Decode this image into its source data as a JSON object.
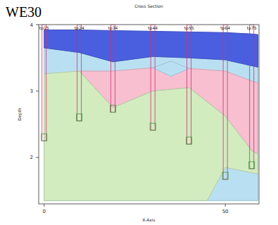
{
  "chart_data": {
    "type": "cross_section",
    "title": "WE30",
    "subtitle": "Cross Section",
    "x_label": "X-Axis",
    "y_label": "Depth",
    "xlim": [
      -1.5,
      59.3
    ],
    "ylim": [
      1.3,
      4.0
    ],
    "xticks": [
      0,
      50
    ],
    "yticks": [
      2,
      3,
      4
    ],
    "boreholes": {
      "names": [
        "tp15",
        "tp24",
        "tp34",
        "tp44",
        "tp55",
        "tp64",
        "tp75"
      ],
      "x": [
        0,
        9.7,
        19,
        30,
        40,
        50,
        57.3
      ],
      "bottom": [
        2.25,
        2.55,
        2.68,
        2.41,
        2.2,
        1.67,
        1.83
      ]
    },
    "layers": [
      {
        "color": "#b9e0f2",
        "points": [
          [
            0,
            3.65
          ],
          [
            9.7,
            3.58
          ],
          [
            19,
            3.44
          ],
          [
            30,
            3.52
          ],
          [
            40,
            3.5
          ],
          [
            50,
            3.47
          ],
          [
            57.3,
            3.38
          ],
          [
            59,
            3.36
          ],
          [
            59,
            1.35
          ],
          [
            0,
            1.35
          ]
        ]
      },
      {
        "color": "#f7bfd0",
        "points": [
          [
            9.7,
            3.3
          ],
          [
            19,
            3.3
          ],
          [
            30,
            3.35
          ],
          [
            40,
            3.34
          ],
          [
            50,
            3.3
          ],
          [
            57.3,
            3.15
          ],
          [
            59,
            3.12
          ],
          [
            59,
            2.05
          ],
          [
            57.3,
            2.1
          ],
          [
            50,
            2.62
          ],
          [
            40,
            3.05
          ],
          [
            30,
            3.0
          ],
          [
            19,
            2.75
          ]
        ]
      },
      {
        "color": "#d2ecc0",
        "points": [
          [
            0,
            3.26
          ],
          [
            9.7,
            3.3
          ],
          [
            19,
            2.75
          ],
          [
            30,
            3.0
          ],
          [
            40,
            3.05
          ],
          [
            50,
            2.62
          ],
          [
            57.3,
            2.1
          ],
          [
            59,
            2.05
          ],
          [
            59,
            1.75
          ],
          [
            50,
            1.85
          ],
          [
            45,
            1.35
          ],
          [
            0,
            1.35
          ]
        ]
      },
      {
        "color": "#b9e0f2",
        "points": [
          [
            30,
            3.35
          ],
          [
            35,
            3.45
          ],
          [
            40,
            3.34
          ],
          [
            35,
            3.22
          ]
        ]
      },
      {
        "color": "#4a5fe0",
        "points": [
          [
            0,
            3.92
          ],
          [
            9.7,
            3.92
          ],
          [
            19,
            3.91
          ],
          [
            30,
            3.9
          ],
          [
            40,
            3.89
          ],
          [
            50,
            3.88
          ],
          [
            57.3,
            3.86
          ],
          [
            59,
            3.85
          ],
          [
            59,
            3.36
          ],
          [
            57.3,
            3.38
          ],
          [
            50,
            3.47
          ],
          [
            40,
            3.5
          ],
          [
            30,
            3.52
          ],
          [
            19,
            3.44
          ],
          [
            9.7,
            3.58
          ],
          [
            0,
            3.65
          ]
        ]
      }
    ]
  }
}
